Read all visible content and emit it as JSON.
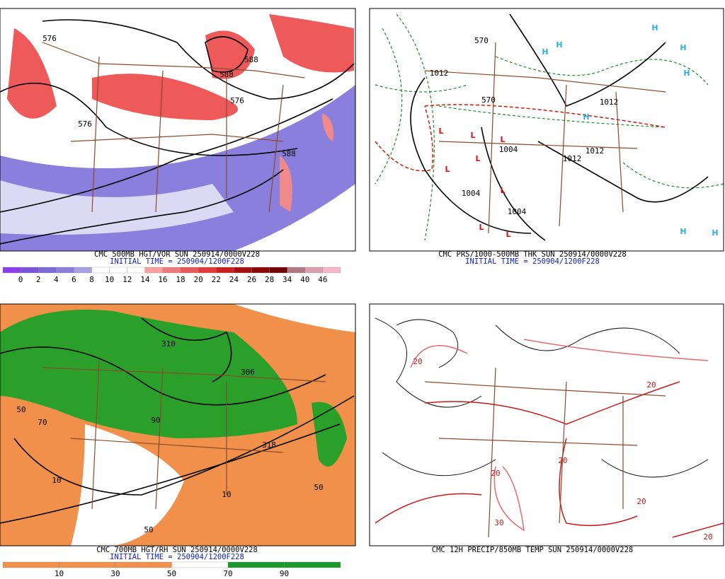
{
  "panels": [
    {
      "caption": "CMC 500MB HGT/VOR SUN 250914/0000V228",
      "initial": "INITIAL TIME = 250904/1200F228",
      "contour_labels": [
        "576",
        "588",
        "576",
        "576",
        "588",
        "588"
      ],
      "colorbar": {
        "labels": [
          "0",
          "2",
          "4",
          "6",
          "8",
          "10",
          "12",
          "14",
          "16",
          "18",
          "20",
          "22",
          "24",
          "26",
          "28",
          "34",
          "40",
          "46"
        ],
        "colors": [
          "#8a3fe8",
          "#7a55dc",
          "#7d6ad8",
          "#8d7fd8",
          "#a8a0e0",
          "#ffffff",
          "#ffffff",
          "#ffffff",
          "#f8a0a0",
          "#f07a7a",
          "#e85a5a",
          "#e03a3a",
          "#c82020",
          "#a81010",
          "#880808",
          "#700000",
          "#b07880",
          "#d8a0b0",
          "#f4b8c8"
        ]
      }
    },
    {
      "caption": "CMC PRS/1000-500MB THK SUN 250914/0000V228",
      "initial": "INITIAL TIME = 250904/1200F228",
      "contour_labels": [
        "1012",
        "1012",
        "1004",
        "1004",
        "1012",
        "1012",
        "1004",
        "570",
        "570"
      ],
      "highs": [
        "H",
        "H",
        "H",
        "H",
        "H",
        "H",
        "H",
        "H"
      ],
      "lows": [
        "L",
        "L",
        "L",
        "L",
        "L",
        "L",
        "L",
        "L"
      ]
    },
    {
      "caption": "CMC 700MB HGT/RH SUN 250914/0000V228",
      "initial": "INITIAL TIME = 250904/1200F228",
      "contour_labels": [
        "310",
        "306",
        "318",
        "50",
        "90",
        "50",
        "10",
        "70",
        "50",
        "10"
      ],
      "colorbar": {
        "labels": [
          "10",
          "30",
          "50",
          "70",
          "90"
        ],
        "colors": [
          "#f0904a",
          "#f0904a",
          "#f0904a",
          "#ffffff",
          "#1a9a2a",
          "#1a9a2a"
        ]
      }
    },
    {
      "caption": "CMC 12H PRECIP/850MB TEMP SUN 250914/0000V228",
      "contour_labels": [
        "20",
        "20",
        "20",
        "30",
        "20",
        "20",
        "20"
      ]
    }
  ]
}
